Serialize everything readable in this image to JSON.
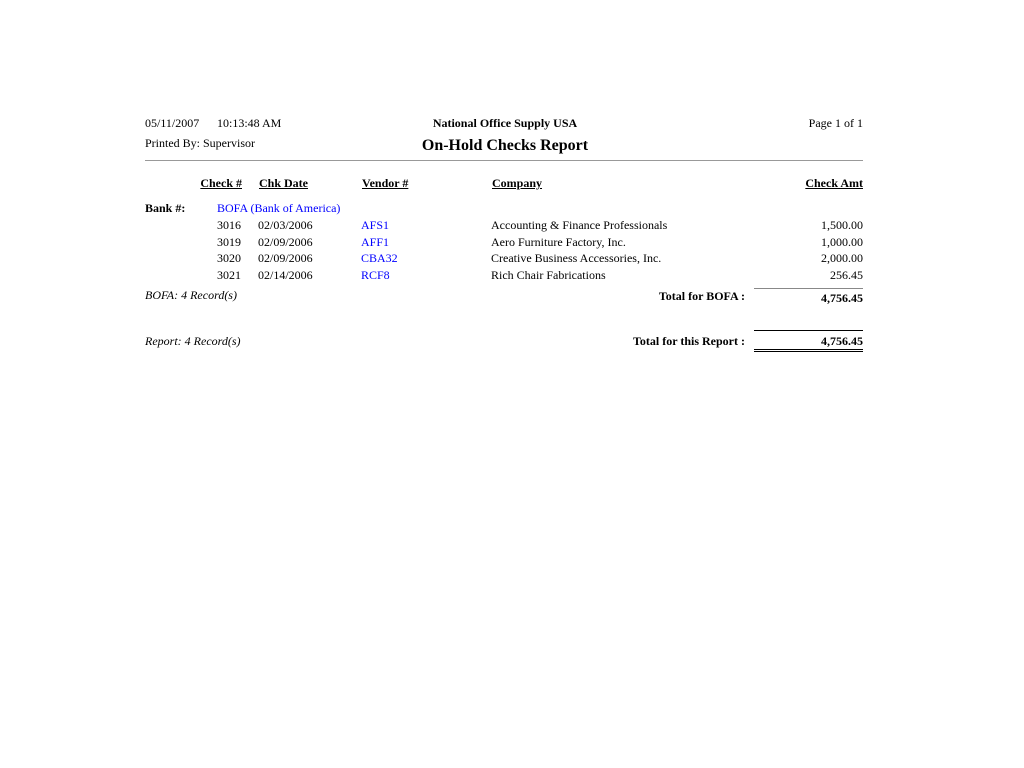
{
  "header": {
    "date": "05/11/2007",
    "time": "10:13:48 AM",
    "printed_by": "Printed By: Supervisor",
    "company": "National Office Supply USA",
    "title": "On-Hold Checks Report",
    "page": "Page 1 of 1"
  },
  "columns": {
    "check": "Check #",
    "date": "Chk Date",
    "vendor": "Vendor #",
    "company": "Company",
    "amount": "Check Amt"
  },
  "bank": {
    "label": "Bank #:",
    "value": "BOFA (Bank of America)"
  },
  "rows": [
    {
      "check": "3016",
      "date": "02/03/2006",
      "vendor": "AFS1",
      "company": "Accounting & Finance Professionals",
      "amount": "1,500.00"
    },
    {
      "check": "3019",
      "date": "02/09/2006",
      "vendor": "AFF1",
      "company": "Aero Furniture Factory, Inc.",
      "amount": "1,000.00"
    },
    {
      "check": "3020",
      "date": "02/09/2006",
      "vendor": "CBA32",
      "company": "Creative Business Accessories, Inc.",
      "amount": "2,000.00"
    },
    {
      "check": "3021",
      "date": "02/14/2006",
      "vendor": "RCF8",
      "company": "Rich Chair Fabrications",
      "amount": "256.45"
    }
  ],
  "group_footer": {
    "records": "BOFA: 4 Record(s)",
    "label": "Total for BOFA :",
    "total": "4,756.45"
  },
  "report_footer": {
    "records": "Report: 4 Record(s)",
    "label": "Total for this Report :",
    "total": "4,756.45"
  }
}
